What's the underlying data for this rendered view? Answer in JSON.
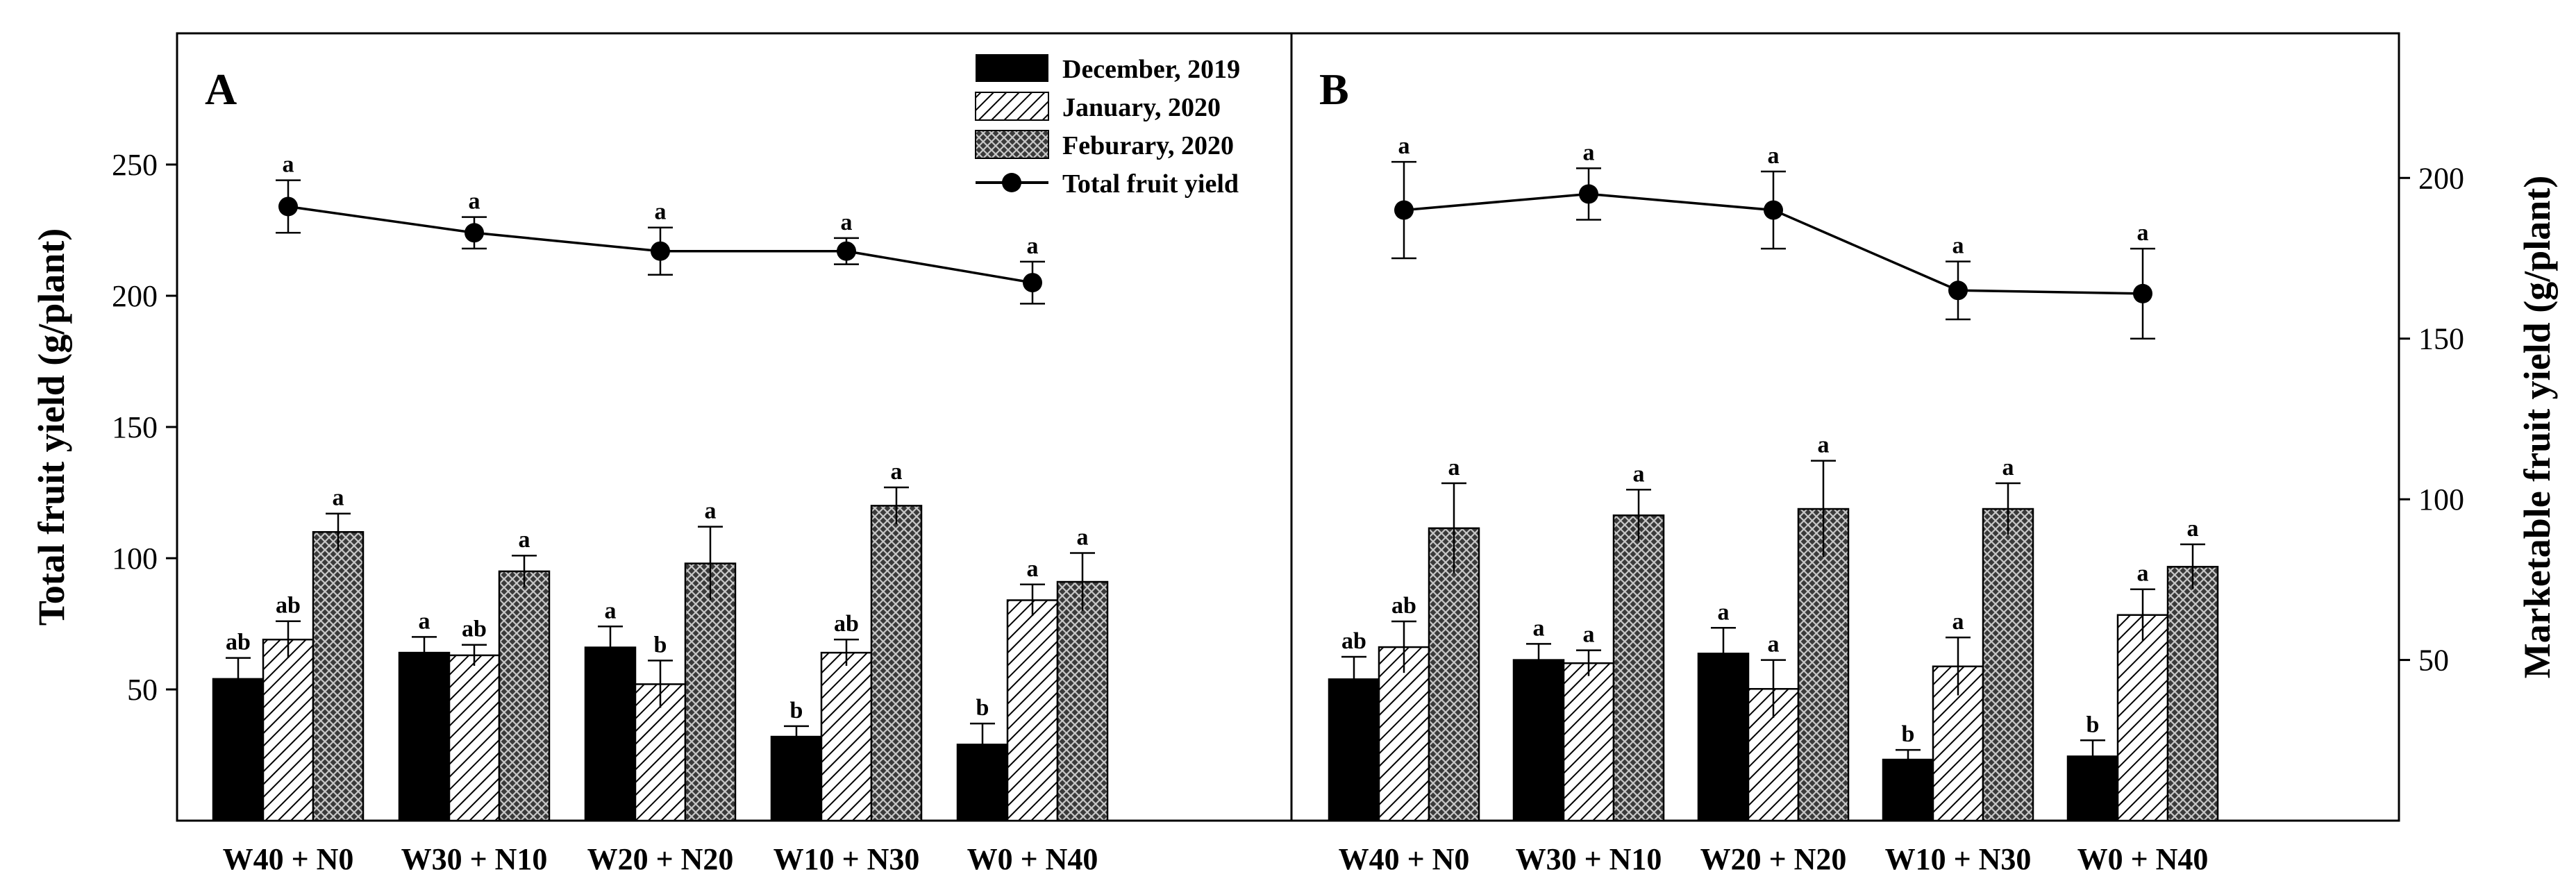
{
  "chart_data": [
    {
      "panel": "A",
      "type": "bar",
      "categories": [
        "W40 + N0",
        "W30 + N10",
        "W20 + N20",
        "W10 + N30",
        "W0 + N40"
      ],
      "ylabel": "Total fruit yield (g/plant)",
      "ylim": [
        0,
        300
      ],
      "yticks": [
        50,
        100,
        150,
        200,
        250
      ],
      "series": [
        {
          "name": "December, 2019",
          "values": [
            54,
            64,
            66,
            32,
            29
          ],
          "errors": [
            8,
            6,
            8,
            4,
            8
          ],
          "letters": [
            "ab",
            "a",
            "a",
            "b",
            "b"
          ]
        },
        {
          "name": "January, 2020",
          "values": [
            69,
            63,
            52,
            64,
            84
          ],
          "errors": [
            7,
            4,
            9,
            5,
            6
          ],
          "letters": [
            "ab",
            "ab",
            "b",
            "ab",
            "a"
          ]
        },
        {
          "name": "Feburary, 2020",
          "values": [
            110,
            95,
            98,
            120,
            91
          ],
          "errors": [
            7,
            6,
            14,
            7,
            11
          ],
          "letters": [
            "a",
            "a",
            "a",
            "a",
            "a"
          ]
        }
      ],
      "line": {
        "name": "Total fruit yield",
        "values": [
          234,
          224,
          217,
          217,
          205
        ],
        "errors": [
          10,
          6,
          9,
          5,
          8
        ],
        "letters": [
          "a",
          "a",
          "a",
          "a",
          "a"
        ]
      }
    },
    {
      "panel": "B",
      "type": "bar",
      "categories": [
        "W40 + N0",
        "W30 + N10",
        "W20 + N20",
        "W10 + N30",
        "W0 + N40"
      ],
      "ylabel": "Marketable fruit yield (g/plant)",
      "ylim": [
        0,
        245
      ],
      "yticks": [
        50,
        100,
        150,
        200
      ],
      "series": [
        {
          "name": "December, 2019",
          "values": [
            44,
            50,
            52,
            19,
            20
          ],
          "errors": [
            7,
            5,
            8,
            3,
            5
          ],
          "letters": [
            "ab",
            "a",
            "a",
            "b",
            "b"
          ]
        },
        {
          "name": "January, 2020",
          "values": [
            54,
            49,
            41,
            48,
            64
          ],
          "errors": [
            8,
            4,
            9,
            9,
            8
          ],
          "letters": [
            "ab",
            "a",
            "a",
            "a",
            "a"
          ]
        },
        {
          "name": "Feburary, 2020",
          "values": [
            91,
            95,
            97,
            97,
            79
          ],
          "errors": [
            14,
            8,
            15,
            8,
            7
          ],
          "letters": [
            "a",
            "a",
            "a",
            "a",
            "a"
          ]
        }
      ],
      "line": {
        "name": "Total fruit yield",
        "values": [
          190,
          195,
          190,
          165,
          164
        ],
        "errors": [
          15,
          8,
          12,
          9,
          14
        ],
        "letters": [
          "a",
          "a",
          "a",
          "a",
          "a"
        ]
      }
    }
  ],
  "legend": [
    {
      "label": "December, 2019",
      "fill": "solid-black"
    },
    {
      "label": "January, 2020",
      "fill": "diagonal-hatch"
    },
    {
      "label": "Feburary, 2020",
      "fill": "crosshatch-dark"
    },
    {
      "label": "Total fruit yield",
      "fill": "line-dot"
    }
  ],
  "colors": {
    "bar_dec": "#000000",
    "line": "#000000",
    "axis": "#000000",
    "background": "#ffffff"
  }
}
